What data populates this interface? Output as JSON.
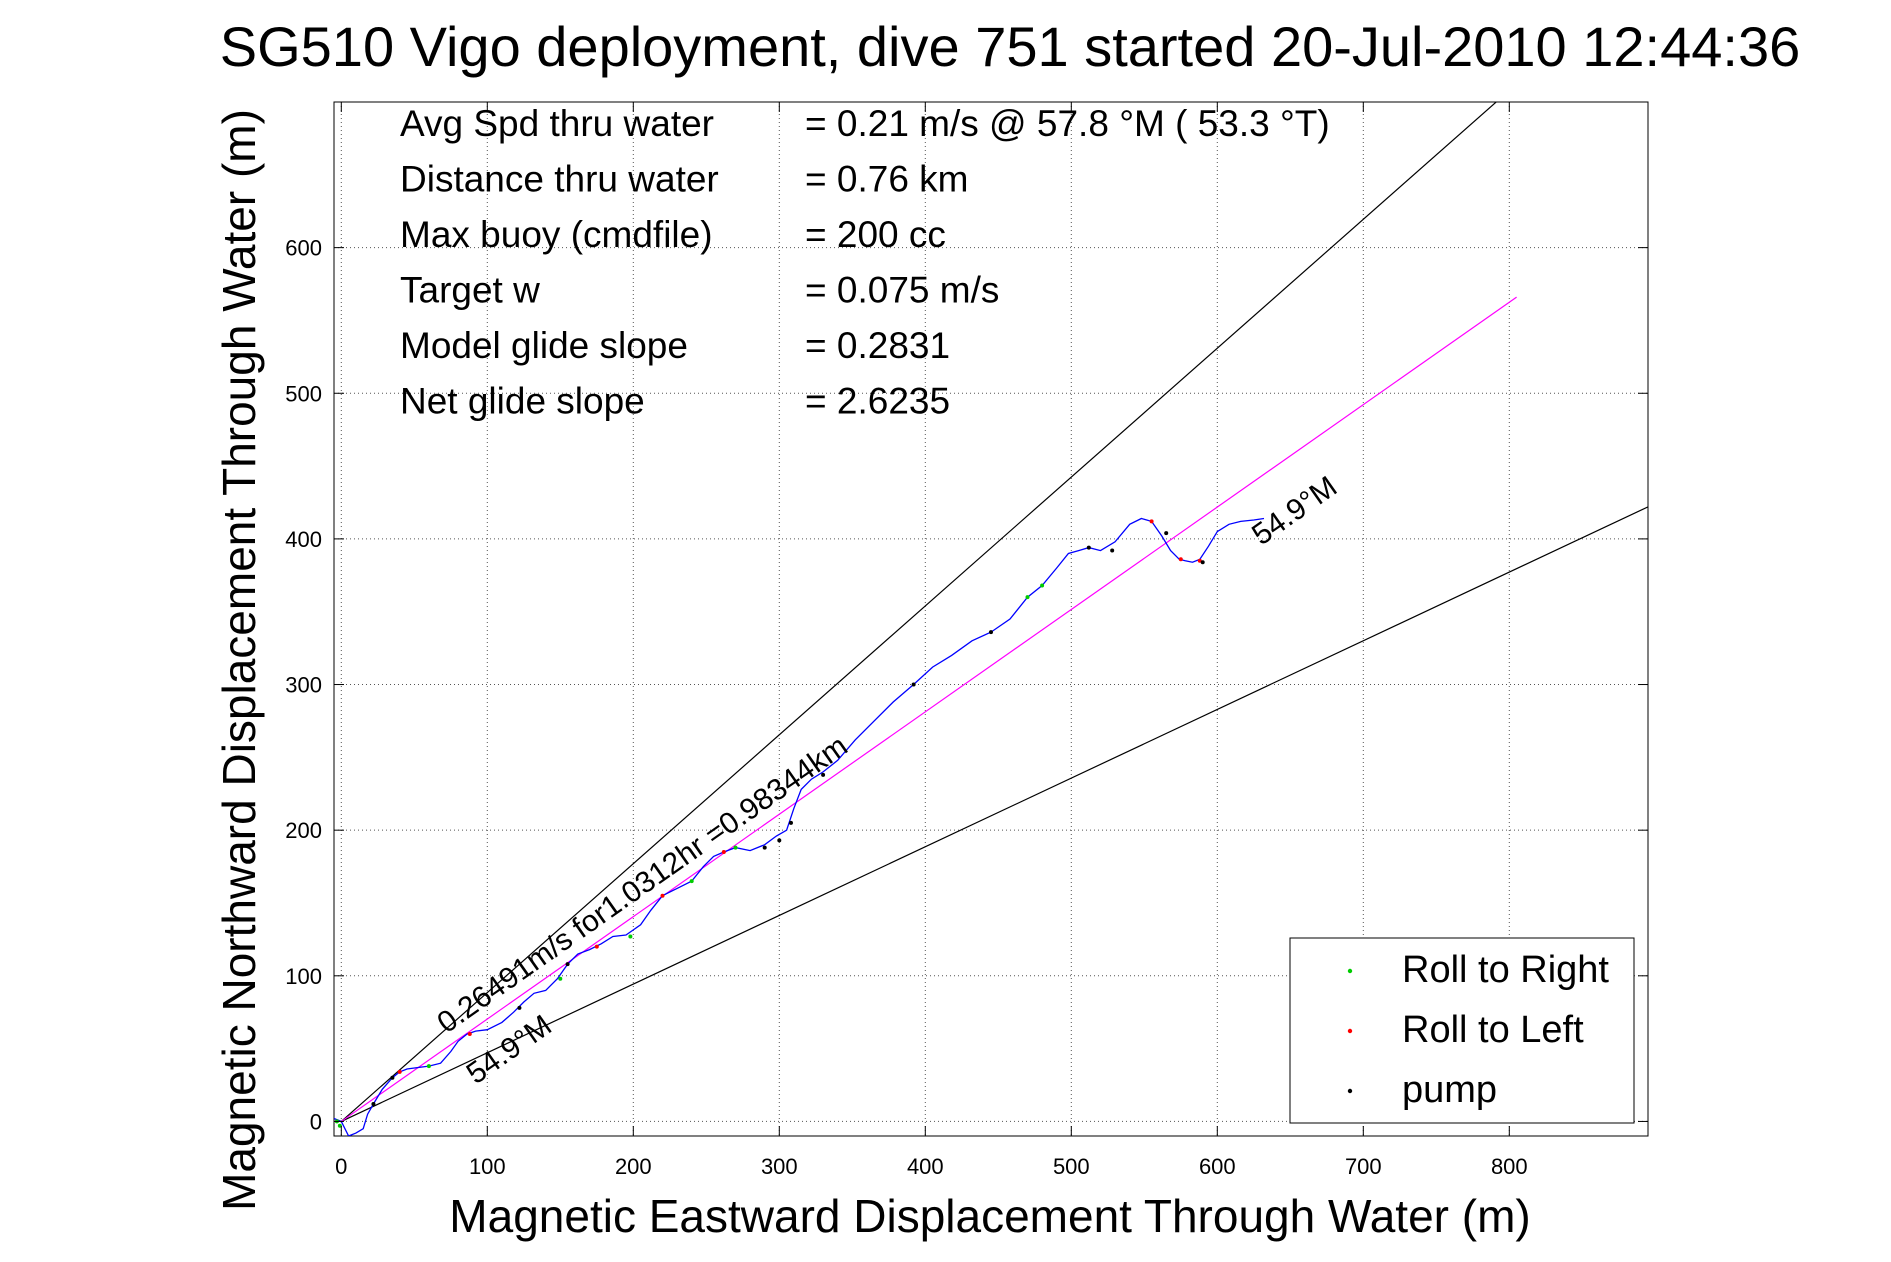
{
  "chart_data": {
    "type": "line",
    "title": "SG510 Vigo deployment, dive 751 started 20-Jul-2010 12:44:36",
    "xlabel": "Magnetic Eastward Displacement Through Water (m)",
    "ylabel": "Magnetic Northward Displacement Through Water (m)",
    "xlim": [
      -5,
      895
    ],
    "ylim": [
      -10,
      700
    ],
    "xticks": [
      0,
      100,
      200,
      300,
      400,
      500,
      600,
      700,
      800
    ],
    "yticks": [
      0,
      100,
      200,
      300,
      400,
      500,
      600
    ],
    "grid": true,
    "stats": [
      {
        "label": "Avg Spd thru water",
        "value": "=  0.21 m/s @  57.8 °M ( 53.3 °T)"
      },
      {
        "label": "Distance thru water",
        "value": "=  0.76 km"
      },
      {
        "label": "Max buoy (cmdfile)",
        "value": "= 200 cc"
      },
      {
        "label": "Target w",
        "value": "= 0.075 m/s"
      },
      {
        "label": "Model glide slope",
        "value": "= 0.2831"
      },
      {
        "label": "Net glide slope",
        "value": "= 2.6235"
      }
    ],
    "annotations": [
      {
        "text": "0.26491m/s for1.0312hr =0.98344km",
        "x": 72,
        "y": 60,
        "angle_deg": 35.1
      },
      {
        "text": "54.9°M",
        "x": 92,
        "y": 25,
        "angle_deg": 35.1
      },
      {
        "text": "54.9°M",
        "x": 630,
        "y": 395,
        "angle_deg": 35.1
      }
    ],
    "reference_lines": [
      {
        "name": "upper bound",
        "points": [
          [
            0,
            0
          ],
          [
            895,
            792
          ]
        ],
        "color": "#000000"
      },
      {
        "name": "lower bound",
        "points": [
          [
            0,
            0
          ],
          [
            895,
            422
          ]
        ],
        "color": "#000000"
      },
      {
        "name": "mean heading",
        "points": [
          [
            0,
            0
          ],
          [
            805,
            566
          ]
        ],
        "color": "#ff00ff"
      }
    ],
    "series": [
      {
        "color": "#0000ff",
        "x": [
          -5,
          0,
          5,
          10,
          15,
          18,
          22,
          28,
          35,
          40,
          45,
          52,
          60,
          68,
          75,
          80,
          86,
          92,
          100,
          110,
          118,
          125,
          132,
          140,
          148,
          155,
          162,
          170,
          178,
          186,
          195,
          205,
          212,
          220,
          230,
          240,
          248,
          255,
          262,
          270,
          280,
          290,
          298,
          305,
          310,
          315,
          322,
          330,
          340,
          352,
          365,
          378,
          392,
          405,
          418,
          432,
          445,
          458,
          470,
          480,
          490,
          498,
          505,
          512,
          520,
          530,
          540,
          548,
          555,
          562,
          568,
          574,
          578,
          583,
          588,
          594,
          600,
          608,
          616,
          625,
          632
        ],
        "y": [
          2,
          0,
          -10,
          -8,
          -5,
          5,
          12,
          22,
          30,
          34,
          36,
          37,
          38,
          40,
          48,
          55,
          60,
          62,
          63,
          68,
          75,
          82,
          88,
          90,
          98,
          108,
          115,
          118,
          122,
          127,
          128,
          135,
          145,
          155,
          160,
          165,
          175,
          182,
          185,
          188,
          186,
          190,
          196,
          200,
          215,
          228,
          235,
          240,
          248,
          262,
          275,
          288,
          300,
          312,
          320,
          330,
          336,
          345,
          360,
          368,
          380,
          390,
          392,
          394,
          392,
          398,
          410,
          414,
          412,
          402,
          392,
          386,
          385,
          384,
          386,
          395,
          405,
          410,
          412,
          413,
          414
        ]
      }
    ],
    "legend": {
      "position": "bottom-right",
      "entries": [
        {
          "label": "Roll to Right",
          "color": "#00cc00"
        },
        {
          "label": "Roll to Left",
          "color": "#ff0000"
        },
        {
          "label": "pump",
          "color": "#000000"
        }
      ]
    },
    "markers": {
      "roll_right": {
        "color": "#00cc00",
        "points": [
          [
            -3,
            0
          ],
          [
            -1,
            -3
          ],
          [
            60,
            38
          ],
          [
            150,
            98
          ],
          [
            198,
            127
          ],
          [
            240,
            165
          ],
          [
            270,
            188
          ],
          [
            480,
            368
          ],
          [
            470,
            360
          ]
        ]
      },
      "roll_left": {
        "color": "#ff0000",
        "points": [
          [
            40,
            34
          ],
          [
            88,
            60
          ],
          [
            175,
            120
          ],
          [
            220,
            155
          ],
          [
            262,
            185
          ],
          [
            555,
            412
          ],
          [
            575,
            386
          ],
          [
            588,
            385
          ]
        ]
      },
      "pump": {
        "color": "#000000",
        "points": [
          [
            22,
            12
          ],
          [
            35,
            30
          ],
          [
            122,
            78
          ],
          [
            155,
            108
          ],
          [
            290,
            188
          ],
          [
            300,
            193
          ],
          [
            308,
            205
          ],
          [
            330,
            238
          ],
          [
            392,
            300
          ],
          [
            445,
            336
          ],
          [
            512,
            394
          ],
          [
            528,
            392
          ],
          [
            565,
            404
          ],
          [
            590,
            384
          ]
        ]
      }
    }
  }
}
